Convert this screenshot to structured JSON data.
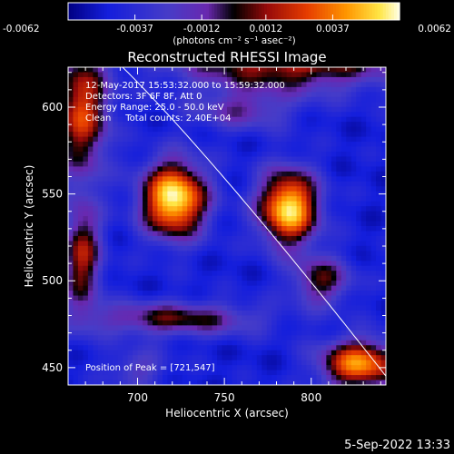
{
  "chart_data": {
    "type": "heatmap",
    "title": "Reconstructed RHESSI Image",
    "xlabel": "Heliocentric X (arcsec)",
    "ylabel": "Heliocentric Y (arcsec)",
    "xlim": [
      660,
      843
    ],
    "ylim": [
      440,
      623
    ],
    "xticks": [
      700,
      750,
      800
    ],
    "yticks": [
      450,
      500,
      550,
      600
    ],
    "colorbar": {
      "min": -0.0062,
      "max": 0.0062,
      "ticks": [
        "-0.0062",
        "-0.0037",
        "-0.0012",
        "0.0012",
        "0.0037",
        "0.0062"
      ],
      "ticks_values": [
        -0.0062,
        -0.0037,
        -0.0012,
        0.0012,
        0.0037,
        0.0062
      ],
      "label": "(photons cm⁻² s⁻¹ asec⁻²)"
    },
    "annotations": [
      "12-May-2017 15:53:32.000 to 15:59:32.000",
      "Detectors: 3F 6F 8F, Att 0",
      "Energy Range: 25.0 - 50.0 keV",
      "Clean     Total counts: 2.40E+04"
    ],
    "peak_label": "Position of Peak = [721,547]",
    "peak": [
      721,
      547
    ],
    "sources": [
      {
        "x": 721,
        "y": 547,
        "amp": 1.0,
        "sx": 13,
        "sy": 15
      },
      {
        "x": 787,
        "y": 542,
        "amp": 0.95,
        "sx": 12,
        "sy": 15
      },
      {
        "x": 828,
        "y": 452,
        "amp": 0.8,
        "sx": 16,
        "sy": 10
      },
      {
        "x": 787,
        "y": 626,
        "amp": 0.6,
        "sx": 45,
        "sy": 12
      },
      {
        "x": 668,
        "y": 598,
        "amp": 0.65,
        "sx": 11,
        "sy": 26
      },
      {
        "x": 668,
        "y": 513,
        "amp": 0.55,
        "sx": 8,
        "sy": 22
      },
      {
        "x": 721,
        "y": 478,
        "amp": 0.45,
        "sx": 35,
        "sy": 7
      },
      {
        "x": 806,
        "y": 500,
        "amp": 0.45,
        "sx": 12,
        "sy": 10
      },
      {
        "x": 760,
        "y": 598,
        "amp": 0.3,
        "sx": 20,
        "sy": 8
      },
      {
        "x": 700,
        "y": 449,
        "amp": 0.25,
        "sx": 12,
        "sy": 8
      }
    ]
  },
  "timestamp": "5-Sep-2022 13:33"
}
